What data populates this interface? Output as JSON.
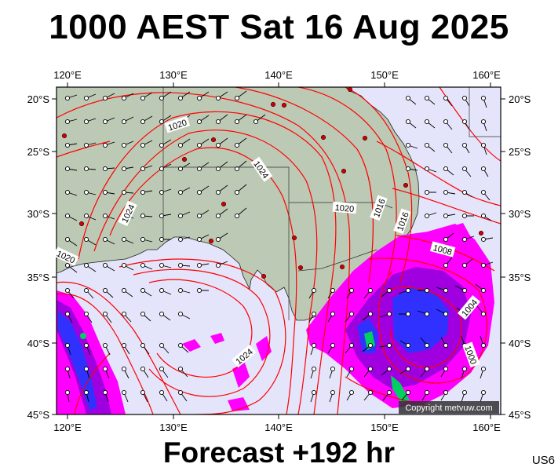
{
  "header": {
    "title": "1000 AEST Sat 16 Aug 2025"
  },
  "footer": {
    "forecast_label": "Forecast +192 hr",
    "model_code": "US6"
  },
  "map": {
    "lon_ticks": [
      "120°E",
      "130°E",
      "140°E",
      "150°E",
      "160°E"
    ],
    "lat_ticks": [
      "20°S",
      "25°S",
      "30°S",
      "35°S",
      "40°S",
      "45°S"
    ],
    "isobar_labels": [
      "1020",
      "1024",
      "1024",
      "1020",
      "1020",
      "1016",
      "1016",
      "1008",
      "1004",
      "1000",
      "1024"
    ],
    "copyright": "Copyright metvuw.com",
    "colors": {
      "ocean": "#e4e4fb",
      "land": "#bcc9b4",
      "isobar": "#ff0000",
      "precip_light": "#ff00ff",
      "precip_medium": "#a000e0",
      "precip_heavy": "#3030ff",
      "precip_extreme": "#00d060"
    }
  }
}
